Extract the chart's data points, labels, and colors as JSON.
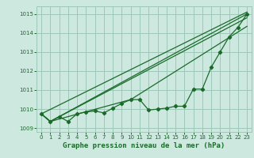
{
  "xlabel": "Graphe pression niveau de la mer (hPa)",
  "bg_color": "#cde8df",
  "grid_color": "#9dc8b8",
  "line_color": "#1a6b2a",
  "xlim": [
    -0.5,
    23.5
  ],
  "ylim": [
    1008.8,
    1015.4
  ],
  "yticks": [
    1009,
    1010,
    1011,
    1012,
    1013,
    1014,
    1015
  ],
  "xticks": [
    0,
    1,
    2,
    3,
    4,
    5,
    6,
    7,
    8,
    9,
    10,
    11,
    12,
    13,
    14,
    15,
    16,
    17,
    18,
    19,
    20,
    21,
    22,
    23
  ],
  "line1_x": [
    0,
    1,
    2,
    3,
    4,
    5,
    6,
    7,
    8,
    9,
    10,
    11,
    12,
    13,
    14,
    15,
    16,
    17,
    18,
    19,
    20,
    21,
    22,
    23
  ],
  "line1_y": [
    1009.75,
    1009.35,
    1009.6,
    1009.35,
    1009.75,
    1009.85,
    1009.9,
    1009.8,
    1010.05,
    1010.3,
    1010.5,
    1010.5,
    1009.95,
    1010.0,
    1010.05,
    1010.15,
    1010.15,
    1011.05,
    1011.05,
    1012.2,
    1013.0,
    1013.8,
    1014.3,
    1015.0
  ],
  "line2_x": [
    0,
    1,
    23
  ],
  "line2_y": [
    1009.75,
    1009.35,
    1015.0
  ],
  "line3_x": [
    0,
    1,
    23
  ],
  "line3_y": [
    1009.75,
    1009.35,
    1014.8
  ],
  "line4_x": [
    0,
    1,
    10,
    23
  ],
  "line4_y": [
    1009.75,
    1009.35,
    1010.5,
    1014.35
  ],
  "line5_x": [
    0,
    23
  ],
  "line5_y": [
    1009.75,
    1015.1
  ]
}
